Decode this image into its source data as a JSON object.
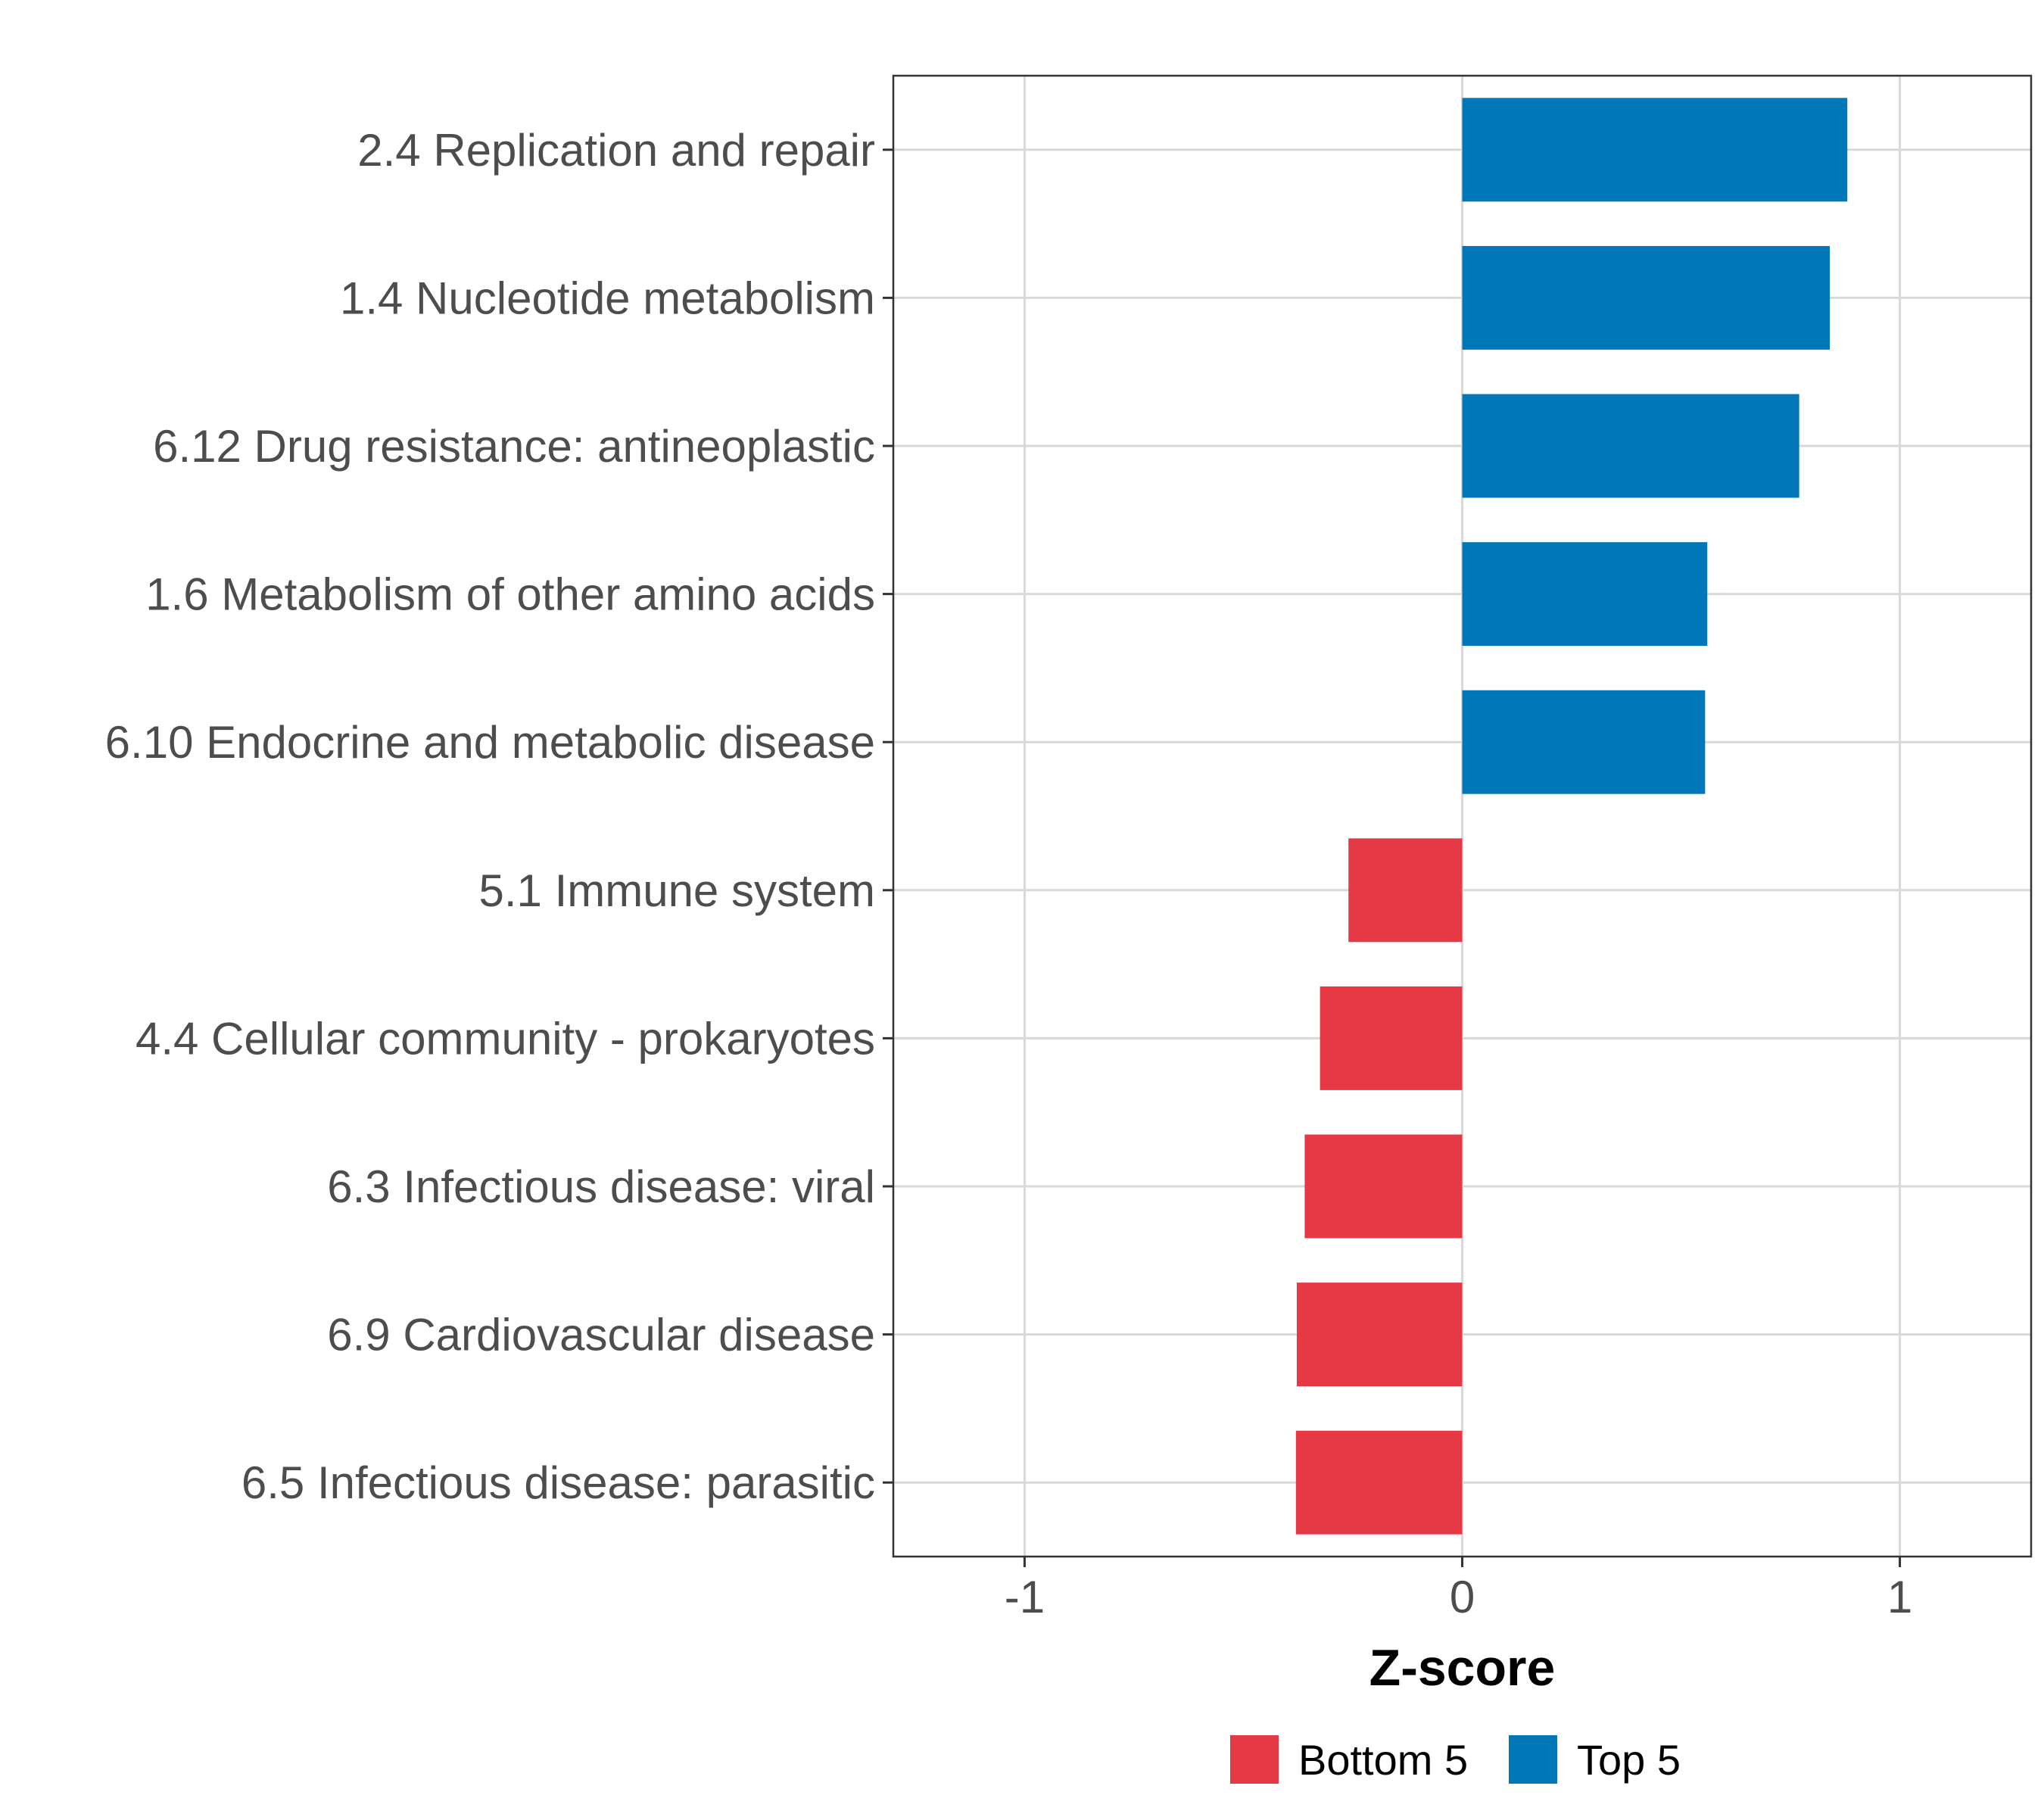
{
  "chart_data": {
    "type": "bar",
    "orientation": "horizontal",
    "title": "",
    "xlabel": "Z-score",
    "ylabel": "",
    "xlim": [
      -1.3,
      1.3
    ],
    "xticks": [
      -1,
      0,
      1
    ],
    "xtick_labels": [
      "-1",
      "0",
      "1"
    ],
    "grid": true,
    "categories": [
      "2.4 Replication and repair",
      "1.4 Nucleotide metabolism",
      "6.12 Drug resistance: antineoplastic",
      "1.6 Metabolism of other amino acids",
      "6.10 Endocrine and metabolic disease",
      "5.1 Immune system",
      "4.4 Cellular community - prokaryotes",
      "6.3 Infectious disease: viral",
      "6.9 Cardiovascular disease",
      "6.5 Infectious disease: parasitic"
    ],
    "values": [
      0.88,
      0.84,
      0.77,
      0.56,
      0.555,
      -0.26,
      -0.325,
      -0.36,
      -0.378,
      -0.38
    ],
    "groups": [
      "Top 5",
      "Top 5",
      "Top 5",
      "Top 5",
      "Top 5",
      "Bottom 5",
      "Bottom 5",
      "Bottom 5",
      "Bottom 5",
      "Bottom 5"
    ],
    "legend": {
      "position": "bottom",
      "entries": [
        {
          "label": "Bottom 5",
          "color": "#e63946"
        },
        {
          "label": "Top 5",
          "color": "#0077b6"
        }
      ]
    },
    "colors": {
      "Top 5": "#0077b6",
      "Bottom 5": "#e63946"
    }
  }
}
